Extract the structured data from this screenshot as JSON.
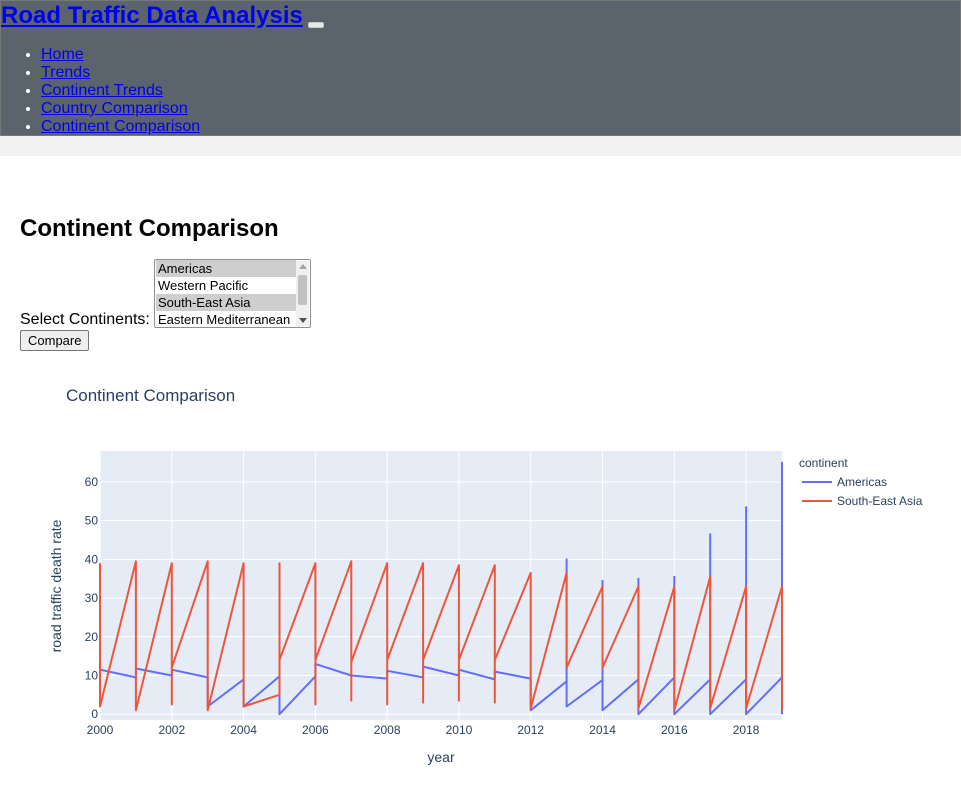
{
  "nav": {
    "brand": "Road Traffic Data Analysis",
    "items": [
      {
        "label": "Home"
      },
      {
        "label": "Trends"
      },
      {
        "label": "Continent Trends"
      },
      {
        "label": "Country Comparison"
      },
      {
        "label": "Continent Comparison"
      }
    ]
  },
  "page": {
    "title": "Continent Comparison",
    "select_label": "Select Continents:",
    "options": [
      {
        "label": "Americas",
        "selected": true
      },
      {
        "label": "Western Pacific",
        "selected": false
      },
      {
        "label": "South-East Asia",
        "selected": true
      },
      {
        "label": "Eastern Mediterranean",
        "selected": false
      }
    ],
    "compare_button": "Compare"
  },
  "colors": {
    "navbar": "#5b646c",
    "americas": "#636efa",
    "south_east_asia": "#ef553b",
    "plot_bg": "#e5ecf6"
  },
  "chart_data": {
    "type": "line",
    "title": "Continent Comparison",
    "xlabel": "year",
    "ylabel": "road traffic death rate",
    "legend_title": "continent",
    "legend_position": "right",
    "xlim": [
      2000,
      2019
    ],
    "ylim": [
      -1.5,
      68
    ],
    "x_ticks": [
      2000,
      2002,
      2004,
      2006,
      2008,
      2010,
      2012,
      2014,
      2016,
      2018
    ],
    "y_ticks": [
      0,
      10,
      20,
      30,
      40,
      50,
      60
    ],
    "grid": true,
    "series": [
      {
        "name": "Americas",
        "color": "#636efa",
        "points": [
          [
            2000,
            11.5
          ],
          [
            2001,
            9.5
          ],
          [
            2001,
            11.8
          ],
          [
            2002,
            10
          ],
          [
            2002,
            11.5
          ],
          [
            2003,
            9.5
          ],
          [
            2003,
            2
          ],
          [
            2004,
            9
          ],
          [
            2004,
            2
          ],
          [
            2005,
            9.8
          ],
          [
            2005,
            0
          ],
          [
            2006,
            9.8
          ],
          [
            2006,
            13
          ],
          [
            2007,
            10
          ],
          [
            2008,
            9.2
          ],
          [
            2008,
            11.2
          ],
          [
            2009,
            9.5
          ],
          [
            2009,
            12.3
          ],
          [
            2010,
            10
          ],
          [
            2010,
            11.5
          ],
          [
            2011,
            9
          ],
          [
            2011,
            11
          ],
          [
            2012,
            9.2
          ],
          [
            2012,
            1
          ],
          [
            2013,
            8.5
          ],
          [
            2013,
            40
          ],
          [
            2013,
            2
          ],
          [
            2014,
            8.8
          ],
          [
            2014,
            34.5
          ],
          [
            2014,
            1
          ],
          [
            2015,
            9
          ],
          [
            2015,
            35
          ],
          [
            2015,
            0
          ],
          [
            2016,
            9.5
          ],
          [
            2016,
            35.5
          ],
          [
            2016,
            0
          ],
          [
            2017,
            9
          ],
          [
            2017,
            46.5
          ],
          [
            2017,
            0
          ],
          [
            2018,
            9
          ],
          [
            2018,
            53.5
          ],
          [
            2018,
            0
          ],
          [
            2019,
            9.5
          ],
          [
            2019,
            65
          ],
          [
            2019,
            0
          ]
        ]
      },
      {
        "name": "South-East Asia",
        "color": "#ef553b",
        "points": [
          [
            2000,
            39
          ],
          [
            2000,
            2
          ],
          [
            2001,
            39.5
          ],
          [
            2001,
            1
          ],
          [
            2002,
            39
          ],
          [
            2002,
            2.5
          ],
          [
            2002,
            12
          ],
          [
            2003,
            39.5
          ],
          [
            2003,
            1
          ],
          [
            2004,
            39
          ],
          [
            2004,
            2
          ],
          [
            2005,
            5
          ],
          [
            2005,
            39
          ],
          [
            2005,
            14
          ],
          [
            2006,
            39
          ],
          [
            2006,
            2.5
          ],
          [
            2006,
            14
          ],
          [
            2007,
            39.5
          ],
          [
            2007,
            3.5
          ],
          [
            2007,
            13.5
          ],
          [
            2008,
            39
          ],
          [
            2008,
            2.5
          ],
          [
            2008,
            14
          ],
          [
            2009,
            39
          ],
          [
            2009,
            3
          ],
          [
            2009,
            14
          ],
          [
            2010,
            38.5
          ],
          [
            2010,
            3.5
          ],
          [
            2010,
            14
          ],
          [
            2011,
            38.5
          ],
          [
            2011,
            3
          ],
          [
            2011,
            14
          ],
          [
            2012,
            36.5
          ],
          [
            2012,
            1.5
          ],
          [
            2013,
            36.5
          ],
          [
            2013,
            12
          ],
          [
            2014,
            33
          ],
          [
            2014,
            12
          ],
          [
            2015,
            33
          ],
          [
            2015,
            12.5
          ],
          [
            2015,
            1.5
          ],
          [
            2016,
            33
          ],
          [
            2016,
            1
          ],
          [
            2017,
            35.5
          ],
          [
            2017,
            1.5
          ],
          [
            2018,
            33
          ],
          [
            2018,
            1.5
          ],
          [
            2019,
            33
          ],
          [
            2019,
            1
          ]
        ]
      }
    ]
  }
}
